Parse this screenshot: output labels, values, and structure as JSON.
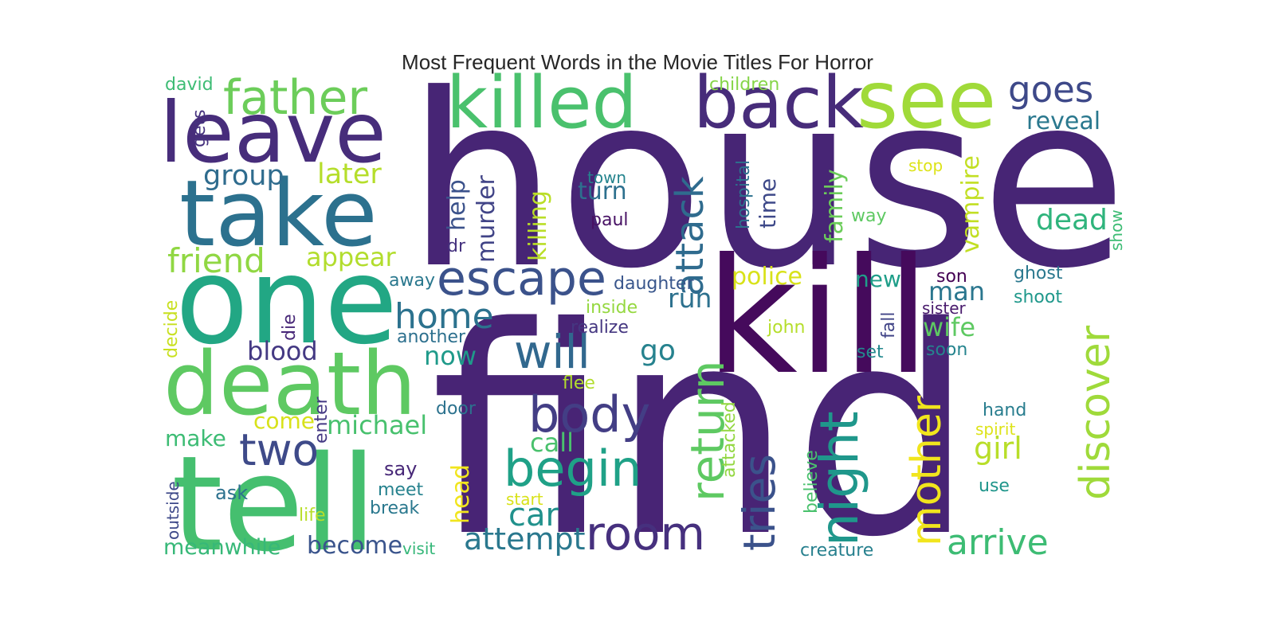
{
  "title": "Most Frequent Words in the Movie Titles For Horror",
  "words": [
    {
      "text": "house",
      "color": "#472575"
    },
    {
      "text": "find",
      "color": "#482475"
    },
    {
      "text": "kill",
      "color": "#450a5c"
    },
    {
      "text": "tell",
      "color": "#45bf6f"
    },
    {
      "text": "one",
      "color": "#22a784"
    },
    {
      "text": "death",
      "color": "#5ec962"
    },
    {
      "text": "take",
      "color": "#2c718e"
    },
    {
      "text": "leave",
      "color": "#472d7b"
    },
    {
      "text": "killed",
      "color": "#4ac16d"
    },
    {
      "text": "back",
      "color": "#472c7a"
    },
    {
      "text": "see",
      "color": "#a0da39"
    },
    {
      "text": "father",
      "color": "#6ccd5a"
    },
    {
      "text": "goes",
      "color": "#3e4989"
    },
    {
      "text": "escape",
      "color": "#3b528b"
    },
    {
      "text": "will",
      "color": "#31688e"
    },
    {
      "text": "body",
      "color": "#433e85"
    },
    {
      "text": "begin",
      "color": "#1fa187"
    },
    {
      "text": "room",
      "color": "#46307e"
    },
    {
      "text": "two",
      "color": "#3e4a89"
    },
    {
      "text": "discover",
      "color": "#9fda3a"
    },
    {
      "text": "mother",
      "color": "#f1e51d"
    },
    {
      "text": "night",
      "color": "#1f978b"
    },
    {
      "text": "tries",
      "color": "#3b528b"
    },
    {
      "text": "return",
      "color": "#5ec962"
    },
    {
      "text": "attack",
      "color": "#2f6b8e"
    },
    {
      "text": "arrive",
      "color": "#3dbc74"
    },
    {
      "text": "home",
      "color": "#2c728e"
    },
    {
      "text": "friend",
      "color": "#90d743"
    },
    {
      "text": "group",
      "color": "#2f6c8e"
    },
    {
      "text": "later",
      "color": "#b5de2b"
    },
    {
      "text": "appear",
      "color": "#b2dd2d"
    },
    {
      "text": "blood",
      "color": "#443983"
    },
    {
      "text": "michael",
      "color": "#48c16e"
    },
    {
      "text": "meanwhile",
      "color": "#37b878"
    },
    {
      "text": "become",
      "color": "#3a548c"
    },
    {
      "text": "attempt",
      "color": "#2a788e"
    },
    {
      "text": "car",
      "color": "#21918c"
    },
    {
      "text": "call",
      "color": "#4ac16d"
    },
    {
      "text": "now",
      "color": "#1f9a8a"
    },
    {
      "text": "go",
      "color": "#26828e"
    },
    {
      "text": "run",
      "color": "#2d718e"
    },
    {
      "text": "police",
      "color": "#d8e219"
    },
    {
      "text": "new",
      "color": "#1f9e89"
    },
    {
      "text": "man",
      "color": "#2a768e"
    },
    {
      "text": "wife",
      "color": "#5ec962"
    },
    {
      "text": "girl",
      "color": "#b8de29"
    },
    {
      "text": "dead",
      "color": "#2fb47c"
    },
    {
      "text": "reveal",
      "color": "#2a788e"
    },
    {
      "text": "vampire",
      "color": "#c2df23"
    },
    {
      "text": "family",
      "color": "#6ccd5a"
    },
    {
      "text": "time",
      "color": "#3e4989"
    },
    {
      "text": "turn",
      "color": "#2d708e"
    },
    {
      "text": "killing",
      "color": "#bade28"
    },
    {
      "text": "help",
      "color": "#3b528b"
    },
    {
      "text": "murder",
      "color": "#414487"
    },
    {
      "text": "head",
      "color": "#f1e51d"
    },
    {
      "text": "make",
      "color": "#3dbc74"
    },
    {
      "text": "come",
      "color": "#d8e219"
    },
    {
      "text": "children",
      "color": "#86d549"
    },
    {
      "text": "david",
      "color": "#3dbc74"
    },
    {
      "text": "gets",
      "color": "#46327e"
    },
    {
      "text": "town",
      "color": "#25848e"
    },
    {
      "text": "paul",
      "color": "#471164"
    },
    {
      "text": "hospital",
      "color": "#2c718e"
    },
    {
      "text": "stop",
      "color": "#dde318"
    },
    {
      "text": "way",
      "color": "#5ec962"
    },
    {
      "text": "show",
      "color": "#3dbc74"
    },
    {
      "text": "dr",
      "color": "#46337f"
    },
    {
      "text": "away",
      "color": "#2a788e"
    },
    {
      "text": "daughter",
      "color": "#39568c"
    },
    {
      "text": "inside",
      "color": "#95d840"
    },
    {
      "text": "realize",
      "color": "#453781"
    },
    {
      "text": "another",
      "color": "#2d708e"
    },
    {
      "text": "john",
      "color": "#b5de2b"
    },
    {
      "text": "son",
      "color": "#440154"
    },
    {
      "text": "sister",
      "color": "#481a6c"
    },
    {
      "text": "ghost",
      "color": "#2a788e"
    },
    {
      "text": "shoot",
      "color": "#1f988b"
    },
    {
      "text": "soon",
      "color": "#25848e"
    },
    {
      "text": "set",
      "color": "#23898e"
    },
    {
      "text": "fall",
      "color": "#414487"
    },
    {
      "text": "die",
      "color": "#482878"
    },
    {
      "text": "decide",
      "color": "#c8e020"
    },
    {
      "text": "flee",
      "color": "#b2dd2d"
    },
    {
      "text": "door",
      "color": "#2c728e"
    },
    {
      "text": "enter",
      "color": "#443983"
    },
    {
      "text": "attacked",
      "color": "#93d741"
    },
    {
      "text": "believe",
      "color": "#4ac16d"
    },
    {
      "text": "hand",
      "color": "#287d8e"
    },
    {
      "text": "spirit",
      "color": "#dde318"
    },
    {
      "text": "use",
      "color": "#1f958b"
    },
    {
      "text": "creature",
      "color": "#27808e"
    },
    {
      "text": "say",
      "color": "#482878"
    },
    {
      "text": "meet",
      "color": "#26828e"
    },
    {
      "text": "break",
      "color": "#2a788e"
    },
    {
      "text": "start",
      "color": "#d8e219"
    },
    {
      "text": "life",
      "color": "#b8de29"
    },
    {
      "text": "ask",
      "color": "#2c718e"
    },
    {
      "text": "outside",
      "color": "#3e4989"
    },
    {
      "text": "visit",
      "color": "#35b779"
    }
  ]
}
